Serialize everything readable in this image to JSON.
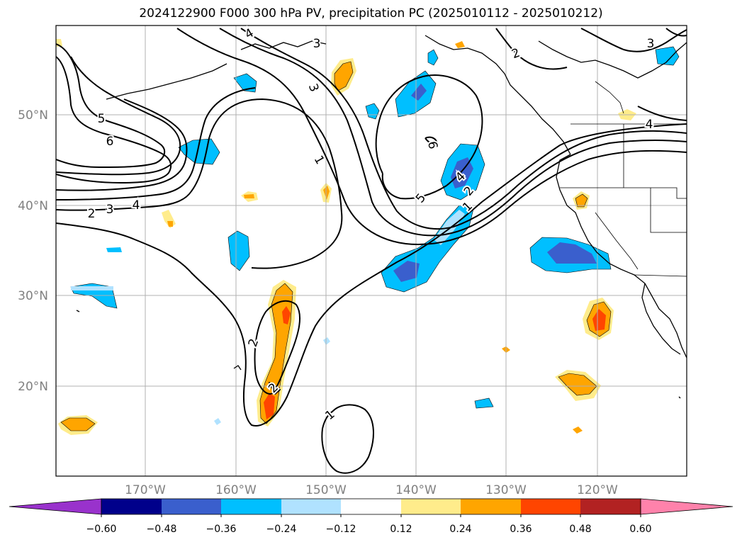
{
  "title": "2024122900 F000 300 hPa PV, precipitation PC (2025010112 - 2025010212)",
  "map": {
    "lat_labels": [
      "50°N",
      "40°N",
      "30°N",
      "20°N"
    ],
    "lon_labels": [
      "170°W",
      "160°W",
      "150°W",
      "140°W",
      "130°W",
      "120°W"
    ],
    "pv_contour_labels": [
      "4",
      "3",
      "2",
      "3",
      "5",
      "6",
      "1",
      "2",
      "3",
      "4",
      "5",
      "4",
      "2",
      "1",
      "2",
      "2",
      "1",
      "4",
      "3",
      "6"
    ]
  },
  "colorbar": {
    "ticks": [
      "−0.60",
      "−0.48",
      "−0.36",
      "−0.24",
      "−0.12",
      "0.12",
      "0.24",
      "0.36",
      "0.48",
      "0.60"
    ],
    "colors": {
      "lt_-060": "#9932cc",
      "b_-060_-048": "#00008b",
      "b_-048_-036": "#3a5fcd",
      "b_-036_-024": "#00bfff",
      "b_-024_-012": "#b0e2ff",
      "b_-012_012": "#ffffff",
      "b_012_024": "#ffec8b",
      "b_024_036": "#ffa500",
      "b_036_048": "#ff4500",
      "b_048_060": "#b22222",
      "gt_060": "#ff82ab"
    }
  }
}
